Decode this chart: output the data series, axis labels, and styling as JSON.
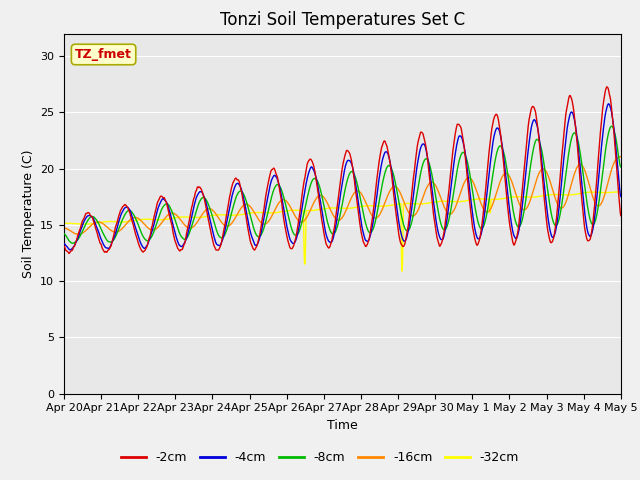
{
  "title": "Tonzi Soil Temperatures Set C",
  "xlabel": "Time",
  "ylabel": "Soil Temperature (C)",
  "ylim": [
    0,
    32
  ],
  "yticks": [
    0,
    5,
    10,
    15,
    20,
    25,
    30
  ],
  "plot_bg_color": "#e8e8e8",
  "fig_bg_color": "#f0f0f0",
  "legend_label": "TZ_fmet",
  "series": {
    "-2cm": {
      "color": "#dd0000",
      "lw": 1.0
    },
    "-4cm": {
      "color": "#0000dd",
      "lw": 1.0
    },
    "-8cm": {
      "color": "#00bb00",
      "lw": 1.0
    },
    "-16cm": {
      "color": "#ff8800",
      "lw": 1.0
    },
    "-32cm": {
      "color": "#ffff00",
      "lw": 1.0
    }
  },
  "xtick_labels": [
    "Apr 20",
    "Apr 21",
    "Apr 22",
    "Apr 23",
    "Apr 24",
    "Apr 25",
    "Apr 26",
    "Apr 27",
    "Apr 28",
    "Apr 29",
    "Apr 30",
    "May 1",
    "May 2",
    "May 3",
    "May 4",
    "May 5"
  ],
  "grid_color": "#ffffff",
  "title_fontsize": 12,
  "axis_fontsize": 9,
  "tick_fontsize": 8
}
